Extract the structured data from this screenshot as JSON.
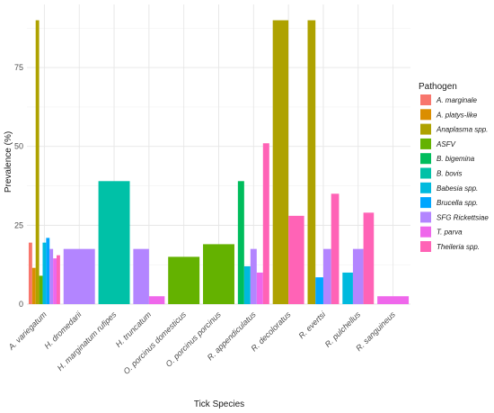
{
  "chart_data": {
    "type": "bar",
    "xlabel": "Tick Species",
    "ylabel": "Prevalence (%)",
    "ylim": [
      0,
      90
    ],
    "yticks": [
      0,
      25,
      50,
      75
    ],
    "grid": true,
    "legend_position": "right",
    "legend_title": "Pathogen",
    "categories": [
      "A. variegatum",
      "H. dromedarii",
      "H. marginatum rufipes",
      "H. truncatum",
      "O. porcinus domesticus",
      "O. porcinus porcinus",
      "R. appendiculatus",
      "R. decoloratus",
      "R. evertsi",
      "R. pulchellus",
      "R. sanguineus"
    ],
    "series": [
      {
        "name": "A. marginale",
        "color": "#F8766D",
        "values": [
          19.5,
          null,
          null,
          null,
          null,
          null,
          null,
          null,
          null,
          null,
          null
        ]
      },
      {
        "name": "A. platys-like",
        "color": "#DB8E00",
        "values": [
          11.5,
          null,
          null,
          null,
          null,
          null,
          null,
          null,
          null,
          null,
          null
        ]
      },
      {
        "name": "Anaplasma spp.",
        "color": "#AEA200",
        "values": [
          90,
          null,
          null,
          null,
          null,
          null,
          null,
          90,
          90,
          null,
          null
        ]
      },
      {
        "name": "ASFV",
        "color": "#64B200",
        "values": [
          9,
          null,
          null,
          null,
          15,
          19,
          null,
          null,
          null,
          null,
          null
        ]
      },
      {
        "name": "B. bigemina",
        "color": "#00BD5C",
        "values": [
          null,
          null,
          null,
          null,
          null,
          null,
          39,
          null,
          null,
          null,
          null
        ]
      },
      {
        "name": "B. bovis",
        "color": "#00C1A7",
        "values": [
          null,
          null,
          39,
          null,
          null,
          null,
          null,
          null,
          null,
          null,
          null
        ]
      },
      {
        "name": "Babesia spp.",
        "color": "#00BADE",
        "values": [
          19.5,
          null,
          null,
          null,
          null,
          null,
          12,
          null,
          null,
          10,
          null
        ]
      },
      {
        "name": "Brucella spp.",
        "color": "#00A6FF",
        "values": [
          21,
          null,
          null,
          null,
          null,
          null,
          null,
          null,
          8.5,
          null,
          null
        ]
      },
      {
        "name": "SFG Rickettsiae",
        "color": "#B385FF",
        "values": [
          17.5,
          17.5,
          null,
          17.5,
          null,
          null,
          17.5,
          null,
          17.5,
          17.5,
          null
        ]
      },
      {
        "name": "T. parva",
        "color": "#EF67EB",
        "values": [
          14.5,
          null,
          null,
          2.5,
          null,
          null,
          10,
          null,
          null,
          null,
          2.5
        ]
      },
      {
        "name": "Theileria spp.",
        "color": "#FF63B6",
        "values": [
          15.5,
          null,
          null,
          null,
          null,
          null,
          51,
          28,
          35,
          29,
          null
        ]
      }
    ]
  }
}
